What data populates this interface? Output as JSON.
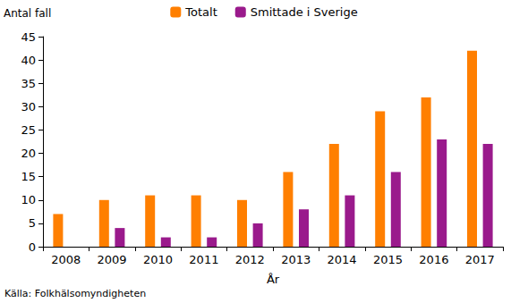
{
  "chart_data": {
    "type": "bar",
    "categories": [
      "2008",
      "2009",
      "2010",
      "2011",
      "2012",
      "2013",
      "2014",
      "2015",
      "2016",
      "2017"
    ],
    "series": [
      {
        "name": "Totalt",
        "color": "#ff7f00",
        "values": [
          7,
          10,
          11,
          11,
          10,
          16,
          22,
          29,
          32,
          42
        ]
      },
      {
        "name": "Smittade i Sverige",
        "color": "#9a1a8c",
        "values": [
          0,
          4,
          2,
          2,
          5,
          8,
          11,
          16,
          23,
          22
        ]
      }
    ],
    "y_label": "Antal fall",
    "x_label": "År",
    "annotations": [
      "Källa: Folkhälsomyndigheten"
    ],
    "ylim": [
      0,
      45
    ],
    "yticks": [
      0,
      5,
      10,
      15,
      20,
      25,
      30,
      35,
      40,
      45
    ],
    "grid": false,
    "legend": "top"
  }
}
